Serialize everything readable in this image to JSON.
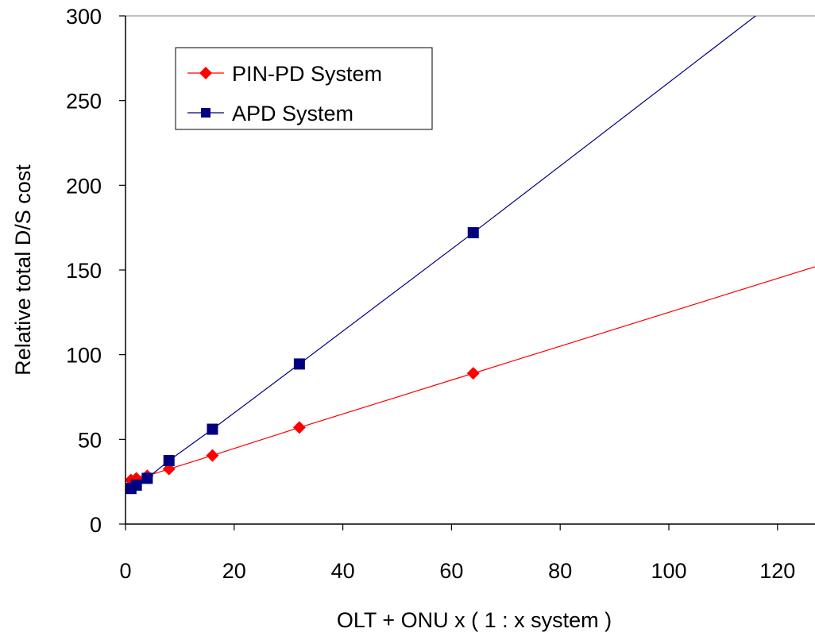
{
  "chart_data": {
    "type": "line",
    "title": "",
    "xlabel": "OLT + ONU x ( 1 : x system )",
    "ylabel": "Relative total D/S cost",
    "xlim": [
      0,
      127
    ],
    "ylim": [
      0,
      300
    ],
    "x_ticks": [
      "0",
      "20",
      "40",
      "60",
      "80",
      "100",
      "120"
    ],
    "y_ticks": [
      "0",
      "50",
      "100",
      "150",
      "200",
      "250",
      "300"
    ],
    "grid": false,
    "legend_position": "top-left",
    "series": [
      {
        "name": "PIN-PD System",
        "color": "#ff0000",
        "marker": "diamond",
        "points": [
          [
            1,
            26
          ],
          [
            2,
            27
          ],
          [
            4,
            28.5
          ],
          [
            8,
            32.5
          ],
          [
            16,
            40.5
          ],
          [
            32,
            57
          ],
          [
            64,
            89
          ],
          [
            128,
            153
          ]
        ],
        "line_to": [
          128,
          153
        ]
      },
      {
        "name": "APD System",
        "color": "#000080",
        "marker": "square",
        "points": [
          [
            1,
            21
          ],
          [
            2,
            23
          ],
          [
            4,
            27
          ],
          [
            8,
            37.5
          ],
          [
            16,
            56
          ],
          [
            32,
            94.5
          ],
          [
            64,
            172
          ]
        ],
        "line_to": [
          118,
          305
        ]
      }
    ]
  }
}
